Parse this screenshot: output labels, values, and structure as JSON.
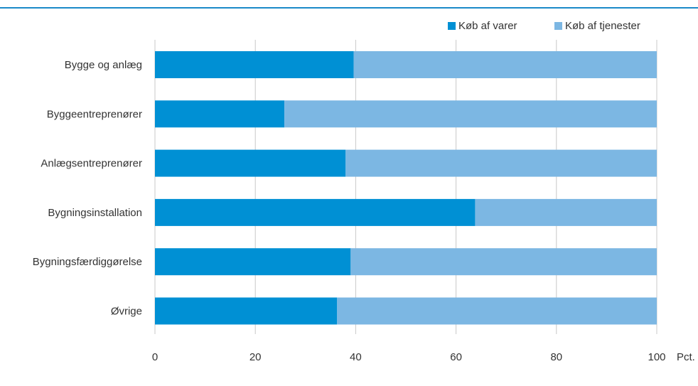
{
  "chart_data": {
    "type": "bar",
    "orientation": "horizontal",
    "stacked": true,
    "categories": [
      "Bygge og anlæg",
      "Byggeentreprenører",
      "Anlægsentreprenører",
      "Bygningsinstallation",
      "Bygningsfærdiggørelse",
      "Øvrige"
    ],
    "series": [
      {
        "name": "Køb af varer",
        "color": "#0090d4",
        "values": [
          39.6,
          25.8,
          38.0,
          63.8,
          39.0,
          36.3
        ]
      },
      {
        "name": "Køb af tjenester",
        "color": "#7cb7e3",
        "values": [
          60.4,
          74.2,
          62.0,
          36.2,
          61.0,
          63.7
        ]
      }
    ],
    "xlim": [
      0,
      100
    ],
    "xticks": [
      0,
      20,
      40,
      60,
      80,
      100
    ],
    "xtick_labels": [
      "0",
      "20",
      "40",
      "60",
      "80",
      "100"
    ],
    "xunit": "Pct.",
    "grid": "vertical",
    "legend": "top-right"
  }
}
